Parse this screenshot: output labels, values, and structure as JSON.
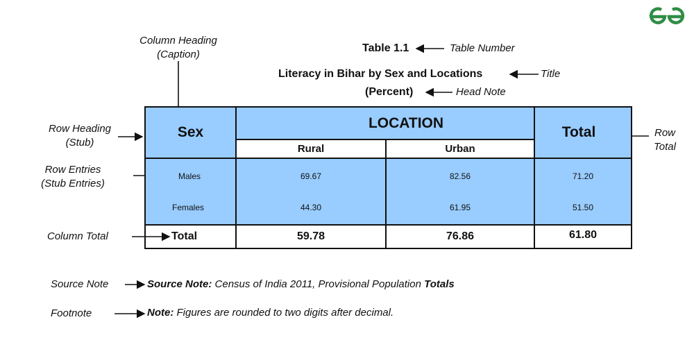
{
  "logo": {
    "text": "GfG",
    "color": "#2f8d46"
  },
  "table_number": {
    "text": "Table 1.1",
    "label": "Table Number",
    "color": "#1f5fa0"
  },
  "title": {
    "text": "Literacy in Bihar by Sex and Locations",
    "label": "Title"
  },
  "head_note": {
    "text": "(Percent)",
    "label": "Head Note"
  },
  "annotations": {
    "column_heading": [
      "Column Heading",
      "(Caption)"
    ],
    "row_heading": [
      "Row Heading",
      "(Stub)"
    ],
    "row_entries": [
      "Row Entries",
      "(Stub Entries)"
    ],
    "column_total": "Column Total",
    "row_total": [
      "Row",
      "Total"
    ],
    "source_note": "Source Note",
    "footnote": "Footnote"
  },
  "table": {
    "fill_color": "#99ccff",
    "stub_header": "Sex",
    "caption": "LOCATION",
    "columns": [
      "Rural",
      "Urban"
    ],
    "total_header": "Total",
    "rows": [
      {
        "label": "Males",
        "rural": "69.67",
        "urban": "82.56",
        "total": "71.20"
      },
      {
        "label": "Females",
        "rural": "44.30",
        "urban": "61.95",
        "total": "51.50"
      }
    ],
    "total_row": {
      "label": "Total",
      "rural": "59.78",
      "urban": "76.86",
      "total": "61.80"
    }
  },
  "source": {
    "bold": "Source Note:",
    "text": " Census of India 2011, Provisional Population ",
    "bold_end": "Totals"
  },
  "note": {
    "bold": "Note:",
    "text": " Figures are rounded to two digits after decimal."
  }
}
